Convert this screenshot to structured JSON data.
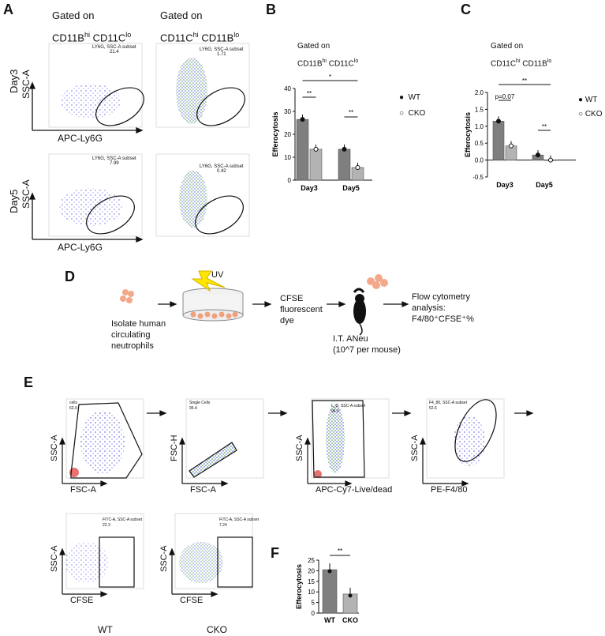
{
  "panels": {
    "A": "A",
    "B": "B",
    "C": "C",
    "D": "D",
    "E": "E",
    "F": "F"
  },
  "panelA": {
    "col1_title_a": "Gated on",
    "col1_title_b": "CD11B",
    "col1_sup1": "hi",
    "col1_title_c": "CD11C",
    "col1_sup2": "lo",
    "col2_title_a": "Gated on",
    "col2_title_b": "CD11C",
    "col2_sup1": "hi",
    "col2_title_c": "CD11B",
    "col2_sup2": "lo",
    "row1": "Day3",
    "row2": "Day5",
    "ylabel": "SSC-A",
    "xlabel": "APC-Ly6G",
    "gates": [
      {
        "name": "LY6G, SSC-A subset",
        "value": "21.4"
      },
      {
        "name": "LY6G, SSC-A subset",
        "value": "1.71"
      },
      {
        "name": "LY6G, SSC-A subset",
        "value": "7.99"
      },
      {
        "name": "LY6G, SSC-A subset",
        "value": "0.42"
      }
    ]
  },
  "panelB_title": {
    "a": "Gated on",
    "b": "CD11B",
    "sup1": "hi",
    "c": "CD11C",
    "sup2": "lo"
  },
  "panelC_title": {
    "a": "Gated on",
    "b": "CD11C",
    "sup1": "hi",
    "c": "CD11B",
    "sup2": "lo"
  },
  "legend": {
    "wt": "WT",
    "cko": "CKO"
  },
  "chart_data": [
    {
      "id": "B",
      "type": "bar",
      "categories": [
        "Day3",
        "Day5"
      ],
      "series": [
        {
          "name": "WT",
          "values": [
            26.5,
            13.5
          ]
        },
        {
          "name": "CKO",
          "values": [
            13.5,
            5.5
          ]
        }
      ],
      "ylabel": "Efferocytosis",
      "ylim": [
        0,
        40
      ],
      "yticks": [
        "0",
        "10",
        "20",
        "30",
        "40"
      ],
      "annotations": {
        "day3": "**",
        "day5": "**",
        "between": "*"
      }
    },
    {
      "id": "C",
      "type": "bar",
      "categories": [
        "Day3",
        "Day5"
      ],
      "series": [
        {
          "name": "WT",
          "values": [
            1.15,
            0.15
          ]
        },
        {
          "name": "CKO",
          "values": [
            0.42,
            0.0
          ]
        }
      ],
      "ylabel": "Efferocytosis",
      "ylim": [
        -0.5,
        2.0
      ],
      "yticks": [
        "-0.5",
        "0.0",
        "0.5",
        "1.0",
        "1.5",
        "2.0"
      ],
      "annotations": {
        "day3": "p=0.07",
        "day5": "**",
        "between": "**"
      }
    },
    {
      "id": "F",
      "type": "bar",
      "categories": [
        "WT",
        "CKO"
      ],
      "values": [
        20.5,
        9.0
      ],
      "ylabel": "Efferocytosis",
      "ylim": [
        0,
        25
      ],
      "yticks": [
        "0",
        "5",
        "10",
        "15",
        "20",
        "25"
      ],
      "annotations": {
        "pair": "**"
      }
    }
  ],
  "panelD": {
    "isolate": "Isolate human circulating neutrophils",
    "uv": "UV",
    "cfse": "CFSE fluorescent dye",
    "it": "I.T. ANeu",
    "dose": "(10^7 per mouse)",
    "flow": "Flow cytometry analysis: F4/80⁺CFSE⁺%"
  },
  "panelE": {
    "plots": [
      {
        "ylabel": "SSC-A",
        "xlabel": "FSC-A",
        "gate": "cells",
        "value": "63.9"
      },
      {
        "ylabel": "FSC-H",
        "xlabel": "FSC-A",
        "gate": "Single Cells",
        "value": "95.4"
      },
      {
        "ylabel": "SSC-A",
        "xlabel": "APC-Cy7-Live/dead",
        "gate": "L_D, SSC-A subset",
        "value": "94.4"
      },
      {
        "ylabel": "SSC-A",
        "xlabel": "PE-F4/80",
        "gate": "F4_80, SSC-A subset",
        "value": "52.6"
      },
      {
        "ylabel": "SSC-A",
        "xlabel": "CFSE",
        "gate": "FITC-A, SSC-A subset",
        "value": "22.3"
      },
      {
        "ylabel": "SSC-A",
        "xlabel": "CFSE",
        "gate": "FITC-A, SSC-A subset",
        "value": "7.24"
      }
    ],
    "wt": "WT",
    "cko": "CKO"
  }
}
